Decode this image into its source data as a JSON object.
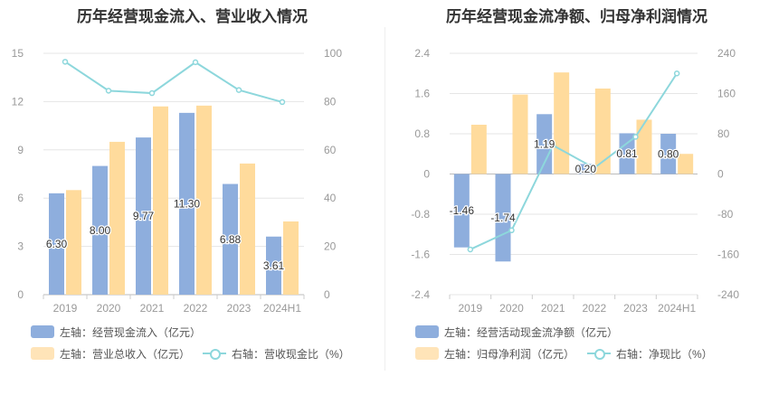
{
  "colors": {
    "bar1": "#8eaedd",
    "bar2": "#ffdb9c",
    "line": "#8dd7dc",
    "grid": "#e6e6e6",
    "axis": "#999999",
    "text": "#555555"
  },
  "chart_data": [
    {
      "type": "bar",
      "title": "历年经营现金流入、营业收入情况",
      "categories": [
        "2019",
        "2020",
        "2021",
        "2022",
        "2023",
        "2024H1"
      ],
      "left_axis": {
        "ylim": [
          0,
          15
        ],
        "ticks": [
          "0",
          "3",
          "6",
          "9",
          "12",
          "15"
        ]
      },
      "right_axis": {
        "ylim": [
          0,
          100
        ],
        "ticks": [
          "0",
          "20",
          "40",
          "60",
          "80",
          "100"
        ]
      },
      "series": [
        {
          "name": "左轴：经营现金流入（亿元）",
          "kind": "bar",
          "axis": "left",
          "values": [
            6.3,
            8.0,
            9.77,
            11.3,
            6.88,
            3.61
          ],
          "labels": [
            "6.30",
            "8.00",
            "9.77",
            "11.30",
            "6.88",
            "3.61"
          ]
        },
        {
          "name": "左轴：营业总收入（亿元）",
          "kind": "bar",
          "axis": "left",
          "values": [
            6.5,
            9.5,
            11.7,
            11.75,
            8.15,
            4.55
          ]
        },
        {
          "name": "右轴：营收现金比（%）",
          "kind": "line",
          "axis": "right",
          "values": [
            96.5,
            84.5,
            83.5,
            96.3,
            84.8,
            79.8
          ]
        }
      ]
    },
    {
      "type": "bar",
      "title": "历年经营现金流净额、归母净利润情况",
      "categories": [
        "2019",
        "2020",
        "2021",
        "2022",
        "2023",
        "2024H1"
      ],
      "left_axis": {
        "ylim": [
          -2.4,
          2.4
        ],
        "ticks": [
          "-2.4",
          "-1.6",
          "-0.8",
          "0",
          "0.8",
          "1.6",
          "2.4"
        ]
      },
      "right_axis": {
        "ylim": [
          -240,
          240
        ],
        "ticks": [
          "-240",
          "-160",
          "-80",
          "0",
          "80",
          "160",
          "240"
        ]
      },
      "series": [
        {
          "name": "左轴：经营活动现金流净额（亿元）",
          "kind": "bar",
          "axis": "left",
          "values": [
            -1.46,
            -1.74,
            1.19,
            0.2,
            0.81,
            0.8
          ],
          "labels": [
            "-1.46",
            "-1.74",
            "1.19",
            "0.20",
            "0.81",
            "0.80"
          ]
        },
        {
          "name": "左轴：归母净利润（亿元）",
          "kind": "bar",
          "axis": "left",
          "values": [
            0.98,
            1.58,
            2.02,
            1.7,
            1.08,
            0.4
          ]
        },
        {
          "name": "右轴：净现比（%）",
          "kind": "line",
          "axis": "right",
          "values": [
            -150,
            -112,
            57,
            12,
            74,
            200
          ]
        }
      ]
    }
  ]
}
